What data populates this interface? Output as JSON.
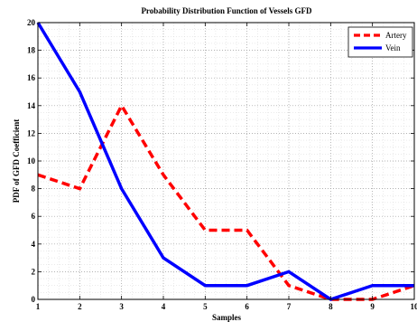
{
  "chart_data": {
    "type": "line",
    "title": "Probability Distribution Function of Vessels GFD",
    "xlabel": "Samples",
    "ylabel": "PDF of GFD Coefficient",
    "x": [
      1,
      2,
      3,
      4,
      5,
      6,
      7,
      8,
      9,
      10
    ],
    "xlim": [
      1,
      10
    ],
    "ylim": [
      0,
      20
    ],
    "xticks": [
      1,
      2,
      3,
      4,
      5,
      6,
      7,
      8,
      9,
      10
    ],
    "yticks": [
      0,
      2,
      4,
      6,
      8,
      10,
      12,
      14,
      16,
      18,
      20
    ],
    "grid": true,
    "legend_position": "top-right",
    "series": [
      {
        "name": "Artery",
        "color": "#ff0000",
        "line_style": "dashed",
        "values": [
          9,
          8,
          14,
          9,
          5,
          5,
          1,
          0,
          0,
          1
        ]
      },
      {
        "name": "Vein",
        "color": "#0000ff",
        "line_style": "solid",
        "values": [
          20,
          15,
          8,
          3,
          1,
          1,
          2,
          0,
          1,
          1
        ]
      }
    ]
  }
}
